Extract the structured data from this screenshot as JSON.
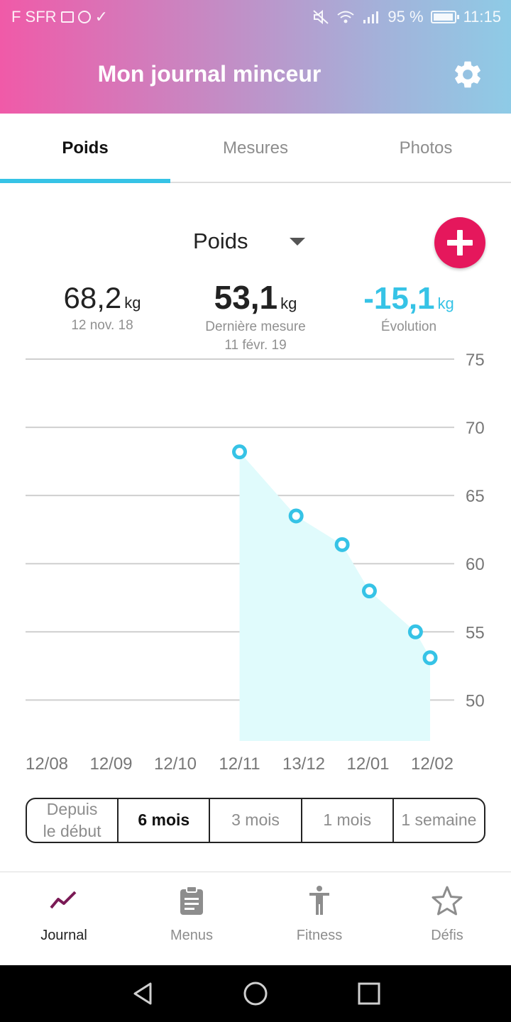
{
  "status_bar": {
    "carrier": "F SFR",
    "battery": "95 %",
    "time": "11:15"
  },
  "header": {
    "title": "Mon journal minceur",
    "settings_icon": "gear-icon"
  },
  "tabs": [
    {
      "label": "Poids",
      "active": true
    },
    {
      "label": "Mesures",
      "active": false
    },
    {
      "label": "Photos",
      "active": false
    }
  ],
  "selector": {
    "label": "Poids"
  },
  "stats": {
    "start": {
      "value": "68,2",
      "unit": "kg",
      "date": "12 nov. 18"
    },
    "last": {
      "value": "53,1",
      "unit": "kg",
      "caption": "Dernière mesure",
      "date": "11 févr. 19"
    },
    "evolution": {
      "value": "-15,1",
      "unit": "kg",
      "caption": "Évolution"
    }
  },
  "colors": {
    "accent": "#36c3e6",
    "add_button": "#e5175c",
    "area_fill": "#e0fbfc",
    "journal_icon": "#7a1a55"
  },
  "chart_data": {
    "type": "area",
    "x_ticks": [
      "12/08",
      "12/09",
      "12/10",
      "12/11",
      "13/12",
      "12/01",
      "12/02"
    ],
    "y_ticks": [
      75,
      70,
      65,
      60,
      55,
      50
    ],
    "ylim": [
      47,
      75
    ],
    "x_range": [
      "2018-08-12",
      "2019-02-12"
    ],
    "grid": true,
    "y_axis_side": "right",
    "series": [
      {
        "points": [
          {
            "date": "2018-11-12",
            "y": 68.2
          },
          {
            "date": "2018-12-09",
            "y": 63.5
          },
          {
            "date": "2018-12-31",
            "y": 61.4
          },
          {
            "date": "2019-01-13",
            "y": 58.0
          },
          {
            "date": "2019-02-04",
            "y": 55.0
          },
          {
            "date": "2019-02-11",
            "y": 53.1
          }
        ]
      }
    ]
  },
  "ranges": [
    {
      "label": "Depuis\nle début",
      "active": false
    },
    {
      "label": "6 mois",
      "active": true
    },
    {
      "label": "3 mois",
      "active": false
    },
    {
      "label": "1 mois",
      "active": false
    },
    {
      "label": "1 semaine",
      "active": false
    }
  ],
  "bottom_nav": [
    {
      "label": "Journal",
      "icon": "trend-line-icon",
      "active": true
    },
    {
      "label": "Menus",
      "icon": "clipboard-icon",
      "active": false
    },
    {
      "label": "Fitness",
      "icon": "person-icon",
      "active": false
    },
    {
      "label": "Défis",
      "icon": "star-icon",
      "active": false
    }
  ]
}
